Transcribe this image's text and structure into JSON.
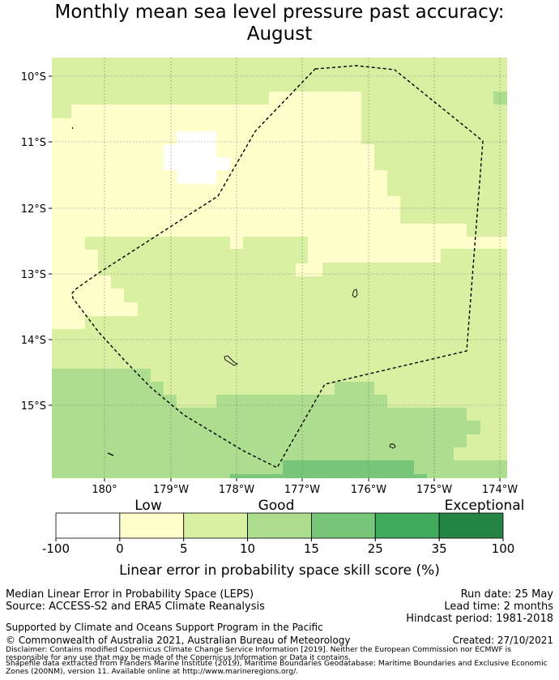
{
  "title": {
    "line1": "Monthly mean sea level pressure past accuracy:",
    "line2": "August"
  },
  "map": {
    "lat_labels": [
      "10°S",
      "11°S",
      "12°S",
      "13°S",
      "14°S",
      "15°S"
    ],
    "lon_labels": [
      "180°",
      "179°W",
      "178°W",
      "177°W",
      "176°W",
      "175°W",
      "174°W"
    ],
    "gridlines": true,
    "boundary_style": "dashed"
  },
  "legend": {
    "category_labels": [
      "Low",
      "Good",
      "Exceptional"
    ],
    "tick_labels": [
      "-100",
      "0",
      "5",
      "10",
      "15",
      "25",
      "35",
      "100"
    ],
    "colors": [
      "#ffffff",
      "#ffffcc",
      "#d9f0a3",
      "#addd8e",
      "#78c679",
      "#41ab5d",
      "#238443"
    ],
    "axis_label": "Linear error in probability space skill score (%)"
  },
  "footer": {
    "method": "Median Linear Error in Probability Space (LEPS)",
    "source": "Source: ACCESS-S2 and ERA5 Climate Reanalysis",
    "run_date": "Run date: 25 May",
    "lead_time": "Lead time: 2 months",
    "hindcast": "Hindcast period: 1981-2018",
    "support": "Supported by Climate and Oceans Support Program in the Pacific",
    "copyright": "© Commonwealth of Australia 2021, Australian Bureau of Meteorology",
    "created": "Created: 27/10/2021",
    "disclaimer1": "Disclaimer: Contains modified Copernicus Climate Change Service Information [2019]. Neither the European Commission nor ECMWF is",
    "disclaimer2": "responsible for any use that may be made of the Copernicus Information or Data it contains.",
    "disclaimer3": "Shapefile data extracted from Flanders Marine Institute (2019), Maritime Boundaries Geodatabase: Maritime Boundaries and Exclusive Economic",
    "disclaimer4": "Zones (200NM), version 11. Available online at http://www.marineregions.org/."
  }
}
